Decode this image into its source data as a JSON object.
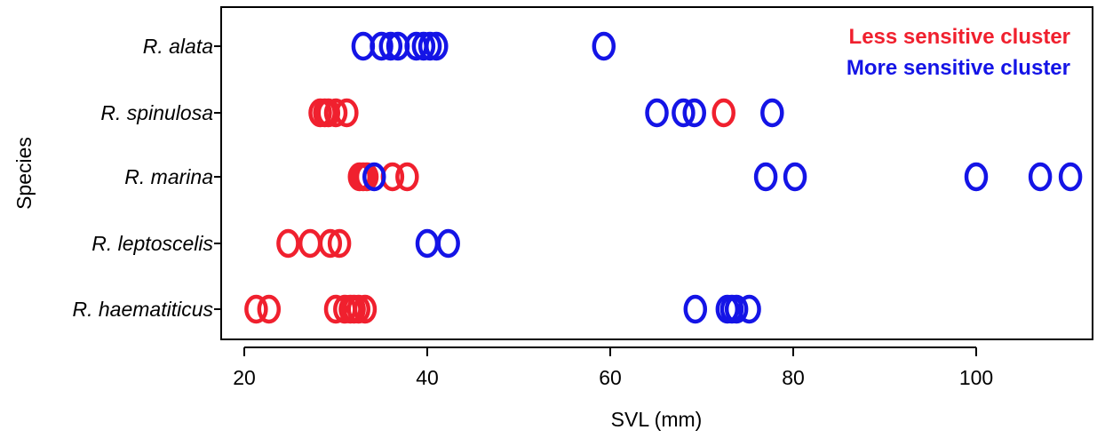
{
  "chart_data": {
    "type": "scatter",
    "xlabel": "SVL (mm)",
    "ylabel": "Species",
    "xlim": [
      18,
      112
    ],
    "xticks": [
      20,
      40,
      60,
      80,
      100
    ],
    "xtick_labels": [
      "20",
      "40",
      "60",
      "80",
      "100"
    ],
    "categories": [
      "R. alata",
      "R. spinulosa",
      "R. marina",
      "R. leptoscelis",
      "R. haematiticus"
    ],
    "grid": false,
    "legend_position": "top-right",
    "series": [
      {
        "name": "Less sensitive cluster",
        "color": "#f0202e",
        "points": [
          {
            "category": "R. spinulosa",
            "x": 28.3
          },
          {
            "category": "R. spinulosa",
            "x": 28.8
          },
          {
            "category": "R. spinulosa",
            "x": 29.2
          },
          {
            "category": "R. spinulosa",
            "x": 30.0
          },
          {
            "category": "R. spinulosa",
            "x": 31.2
          },
          {
            "category": "R. spinulosa",
            "x": 72.4
          },
          {
            "category": "R. marina",
            "x": 32.6
          },
          {
            "category": "R. marina",
            "x": 33.0
          },
          {
            "category": "R. marina",
            "x": 33.4
          },
          {
            "category": "R. marina",
            "x": 36.2
          },
          {
            "category": "R. marina",
            "x": 37.8
          },
          {
            "category": "R. leptoscelis",
            "x": 24.8
          },
          {
            "category": "R. leptoscelis",
            "x": 27.2
          },
          {
            "category": "R. leptoscelis",
            "x": 29.4
          },
          {
            "category": "R. leptoscelis",
            "x": 30.4
          },
          {
            "category": "R. haematiticus",
            "x": 21.3
          },
          {
            "category": "R. haematiticus",
            "x": 22.7
          },
          {
            "category": "R. haematiticus",
            "x": 30.0
          },
          {
            "category": "R. haematiticus",
            "x": 31.0
          },
          {
            "category": "R. haematiticus",
            "x": 31.6
          },
          {
            "category": "R. haematiticus",
            "x": 32.0
          },
          {
            "category": "R. haematiticus",
            "x": 32.5
          },
          {
            "category": "R. haematiticus",
            "x": 33.2
          }
        ]
      },
      {
        "name": "More sensitive cluster",
        "color": "#1414e6",
        "points": [
          {
            "category": "R. alata",
            "x": 33.0
          },
          {
            "category": "R. alata",
            "x": 35.0
          },
          {
            "category": "R. alata",
            "x": 36.0
          },
          {
            "category": "R. alata",
            "x": 36.8
          },
          {
            "category": "R. alata",
            "x": 38.8
          },
          {
            "category": "R. alata",
            "x": 39.6
          },
          {
            "category": "R. alata",
            "x": 40.3
          },
          {
            "category": "R. alata",
            "x": 41.0
          },
          {
            "category": "R. alata",
            "x": 59.3
          },
          {
            "category": "R. spinulosa",
            "x": 65.1
          },
          {
            "category": "R. spinulosa",
            "x": 68.0
          },
          {
            "category": "R. spinulosa",
            "x": 69.2
          },
          {
            "category": "R. spinulosa",
            "x": 77.7
          },
          {
            "category": "R. marina",
            "x": 34.2
          },
          {
            "category": "R. marina",
            "x": 77.0
          },
          {
            "category": "R. marina",
            "x": 80.2
          },
          {
            "category": "R. marina",
            "x": 100.0
          },
          {
            "category": "R. marina",
            "x": 107.0
          },
          {
            "category": "R. marina",
            "x": 110.3
          },
          {
            "category": "R. leptoscelis",
            "x": 40.0
          },
          {
            "category": "R. leptoscelis",
            "x": 42.3
          },
          {
            "category": "R. haematiticus",
            "x": 69.3
          },
          {
            "category": "R. haematiticus",
            "x": 72.8
          },
          {
            "category": "R. haematiticus",
            "x": 73.3
          },
          {
            "category": "R. haematiticus",
            "x": 73.8
          },
          {
            "category": "R. haematiticus",
            "x": 75.2
          }
        ]
      }
    ]
  }
}
